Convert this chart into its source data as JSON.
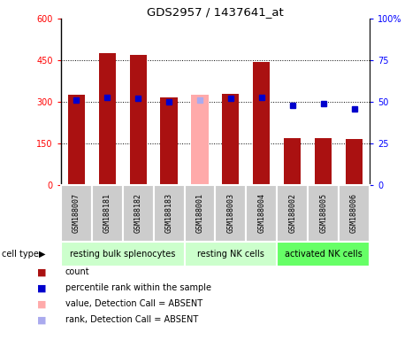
{
  "title": "GDS2957 / 1437641_at",
  "samples": [
    "GSM188007",
    "GSM188181",
    "GSM188182",
    "GSM188183",
    "GSM188001",
    "GSM188003",
    "GSM188004",
    "GSM188002",
    "GSM188005",
    "GSM188006"
  ],
  "bar_values": [
    325,
    475,
    470,
    315,
    325,
    328,
    445,
    170,
    170,
    168
  ],
  "bar_absent": [
    false,
    false,
    false,
    false,
    true,
    false,
    false,
    false,
    false,
    false
  ],
  "percentile_values": [
    51,
    53,
    52,
    50,
    51,
    52,
    53,
    48,
    49,
    46
  ],
  "percentile_absent": [
    false,
    false,
    false,
    false,
    true,
    false,
    false,
    false,
    false,
    false
  ],
  "ylim_left": [
    0,
    600
  ],
  "ylim_right": [
    0,
    100
  ],
  "yticks_left": [
    0,
    150,
    300,
    450,
    600
  ],
  "yticks_right": [
    0,
    25,
    50,
    75,
    100
  ],
  "bar_color_present": "#aa1111",
  "bar_color_absent": "#ffaaaa",
  "dot_color_present": "#0000cc",
  "dot_color_absent": "#aaaaee",
  "sample_bg_color": "#cccccc",
  "resting_bulk_color": "#ccffcc",
  "resting_nk_color": "#ccffcc",
  "activated_nk_color": "#66ff66",
  "cell_type_groups": [
    {
      "label": "resting bulk splenocytes",
      "indices": [
        0,
        1,
        2,
        3
      ],
      "color": "#ccffcc"
    },
    {
      "label": "resting NK cells",
      "indices": [
        4,
        5,
        6
      ],
      "color": "#ccffcc"
    },
    {
      "label": "activated NK cells",
      "indices": [
        7,
        8,
        9
      ],
      "color": "#66ff66"
    }
  ],
  "legend_items": [
    {
      "color": "#aa1111",
      "label": "count"
    },
    {
      "color": "#0000cc",
      "label": "percentile rank within the sample"
    },
    {
      "color": "#ffaaaa",
      "label": "value, Detection Call = ABSENT"
    },
    {
      "color": "#aaaaee",
      "label": "rank, Detection Call = ABSENT"
    }
  ]
}
